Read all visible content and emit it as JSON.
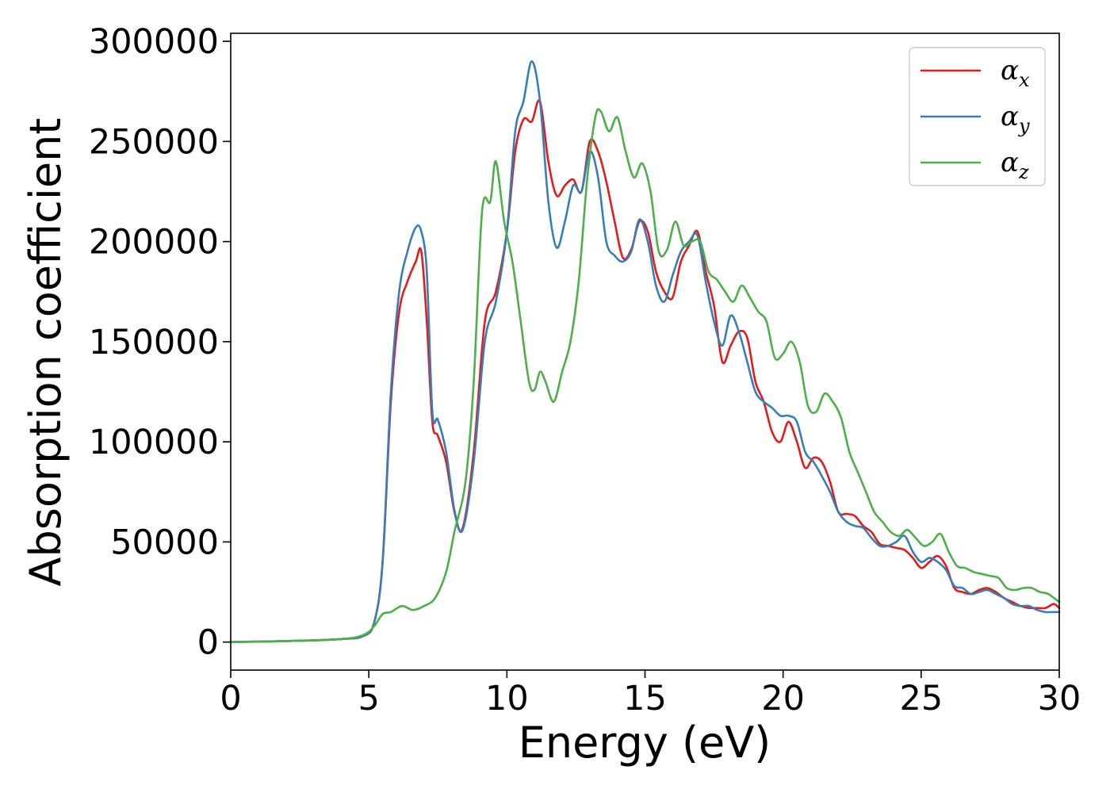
{
  "chart_data": {
    "type": "line",
    "title": "",
    "xlabel": "Energy (eV)",
    "ylabel": "Absorption coefficient",
    "xlim": [
      0,
      30
    ],
    "ylim": [
      -14000,
      304000
    ],
    "xticks": [
      0,
      5,
      10,
      15,
      20,
      25,
      30
    ],
    "xtick_labels": [
      "0",
      "5",
      "10",
      "15",
      "20",
      "25",
      "30"
    ],
    "yticks": [
      0,
      50000,
      100000,
      150000,
      200000,
      250000,
      300000
    ],
    "ytick_labels": [
      "0",
      "50000",
      "100000",
      "150000",
      "200000",
      "250000",
      "300000"
    ],
    "grid": false,
    "legend_position": "top-right",
    "series": [
      {
        "name": "α_x",
        "symbol": "α",
        "subscript": "x",
        "color": "#e41a1c",
        "x": [
          0,
          2,
          4,
          4.8,
          5.2,
          5.5,
          5.8,
          6.1,
          6.4,
          6.7,
          6.9,
          7.1,
          7.3,
          7.5,
          7.8,
          8.1,
          8.4,
          8.8,
          9.2,
          9.6,
          10.0,
          10.3,
          10.6,
          10.9,
          11.2,
          11.5,
          11.8,
          12.1,
          12.4,
          12.7,
          13.0,
          13.3,
          13.6,
          13.9,
          14.2,
          14.5,
          14.8,
          15.1,
          15.4,
          15.7,
          16.0,
          16.3,
          16.6,
          16.9,
          17.2,
          17.5,
          17.8,
          18.1,
          18.4,
          18.7,
          19.0,
          19.3,
          19.6,
          19.9,
          20.2,
          20.5,
          20.8,
          21.1,
          21.4,
          21.7,
          22.0,
          22.3,
          22.6,
          22.9,
          23.2,
          23.5,
          23.8,
          24.1,
          24.4,
          24.7,
          25.0,
          25.3,
          25.6,
          25.9,
          26.2,
          26.5,
          26.8,
          27.1,
          27.4,
          27.7,
          28.0,
          28.3,
          28.6,
          28.9,
          29.2,
          29.5,
          29.8,
          30.0
        ],
        "y": [
          0,
          500,
          1500,
          3000,
          10000,
          40000,
          120000,
          165000,
          180000,
          190000,
          195000,
          160000,
          110000,
          103000,
          90000,
          65000,
          57000,
          95000,
          160000,
          175000,
          205000,
          245000,
          261000,
          260000,
          270000,
          240000,
          223000,
          228000,
          231000,
          225000,
          250000,
          245000,
          230000,
          210000,
          192000,
          196000,
          210000,
          205000,
          185000,
          175000,
          172000,
          190000,
          198000,
          205000,
          185000,
          168000,
          140000,
          148000,
          155000,
          152000,
          130000,
          120000,
          105000,
          100000,
          110000,
          100000,
          87000,
          92000,
          90000,
          80000,
          65000,
          64000,
          63000,
          58000,
          55000,
          49000,
          48000,
          47000,
          46000,
          42000,
          37000,
          40000,
          43000,
          38000,
          27000,
          25000,
          24000,
          26000,
          27000,
          25000,
          22000,
          20000,
          18000,
          17000,
          17000,
          17000,
          19000,
          17000
        ]
      },
      {
        "name": "α_y",
        "symbol": "α",
        "subscript": "y",
        "color": "#377eb8",
        "x": [
          0,
          2,
          4,
          4.8,
          5.2,
          5.5,
          5.8,
          6.1,
          6.4,
          6.7,
          6.9,
          7.1,
          7.3,
          7.5,
          7.8,
          8.1,
          8.4,
          8.8,
          9.2,
          9.6,
          10.0,
          10.3,
          10.6,
          10.9,
          11.2,
          11.5,
          11.8,
          12.1,
          12.4,
          12.7,
          13.0,
          13.3,
          13.6,
          13.9,
          14.2,
          14.5,
          14.8,
          15.1,
          15.4,
          15.7,
          16.0,
          16.3,
          16.6,
          16.9,
          17.2,
          17.5,
          17.8,
          18.1,
          18.4,
          18.7,
          19.0,
          19.3,
          19.6,
          19.9,
          20.2,
          20.5,
          20.8,
          21.1,
          21.4,
          21.7,
          22.0,
          22.3,
          22.6,
          22.9,
          23.2,
          23.5,
          23.8,
          24.1,
          24.4,
          24.7,
          25.0,
          25.3,
          25.6,
          25.9,
          26.2,
          26.5,
          26.8,
          27.1,
          27.4,
          27.7,
          28.0,
          28.3,
          28.6,
          28.9,
          29.2,
          29.5,
          29.8,
          30.0
        ],
        "y": [
          0,
          500,
          1500,
          3000,
          10000,
          40000,
          125000,
          175000,
          195000,
          207000,
          205000,
          185000,
          115000,
          111000,
          95000,
          66000,
          56000,
          90000,
          150000,
          170000,
          205000,
          255000,
          270000,
          290000,
          270000,
          220000,
          197000,
          210000,
          228000,
          225000,
          245000,
          232000,
          200000,
          193000,
          190000,
          195000,
          211000,
          200000,
          178000,
          170000,
          183000,
          195000,
          200000,
          203000,
          180000,
          160000,
          148000,
          163000,
          155000,
          140000,
          125000,
          120000,
          117000,
          113000,
          113000,
          110000,
          95000,
          90000,
          83000,
          75000,
          65000,
          60000,
          58000,
          57000,
          52000,
          48000,
          48000,
          50000,
          53000,
          45000,
          40000,
          42000,
          40000,
          36000,
          28000,
          27000,
          24000,
          25000,
          26000,
          24000,
          22000,
          19000,
          18000,
          18000,
          16000,
          15000,
          15000,
          15000
        ]
      },
      {
        "name": "α_z",
        "symbol": "α",
        "subscript": "z",
        "color": "#4daf4a",
        "x": [
          0,
          2,
          4,
          4.8,
          5.2,
          5.5,
          5.8,
          6.2,
          6.6,
          7.0,
          7.4,
          7.8,
          8.1,
          8.5,
          8.8,
          9.1,
          9.4,
          9.6,
          9.9,
          10.2,
          10.5,
          10.8,
          11.0,
          11.2,
          11.4,
          11.7,
          12.0,
          12.3,
          12.6,
          12.9,
          13.2,
          13.4,
          13.7,
          14.0,
          14.3,
          14.6,
          14.9,
          15.2,
          15.5,
          15.8,
          16.1,
          16.4,
          16.7,
          17.0,
          17.3,
          17.6,
          17.9,
          18.2,
          18.5,
          18.8,
          19.1,
          19.4,
          19.7,
          20.0,
          20.3,
          20.6,
          20.9,
          21.2,
          21.5,
          21.8,
          22.1,
          22.4,
          22.7,
          23.0,
          23.3,
          23.6,
          23.9,
          24.2,
          24.5,
          24.8,
          25.1,
          25.4,
          25.7,
          26.0,
          26.3,
          26.6,
          26.9,
          27.2,
          27.5,
          27.8,
          28.1,
          28.4,
          28.7,
          29.0,
          29.3,
          29.6,
          30.0
        ],
        "y": [
          0,
          400,
          1500,
          3500,
          8000,
          14000,
          15000,
          18000,
          16000,
          18000,
          22000,
          35000,
          55000,
          80000,
          130000,
          215000,
          220000,
          240000,
          210000,
          190000,
          160000,
          130000,
          126000,
          135000,
          130000,
          120000,
          135000,
          150000,
          180000,
          230000,
          262000,
          265000,
          255000,
          262000,
          245000,
          232000,
          239000,
          225000,
          195000,
          196000,
          210000,
          198000,
          200000,
          200000,
          185000,
          181000,
          175000,
          170000,
          178000,
          172000,
          165000,
          160000,
          142000,
          144000,
          150000,
          140000,
          118000,
          115000,
          124000,
          120000,
          112000,
          95000,
          85000,
          75000,
          65000,
          60000,
          55000,
          53000,
          56000,
          52000,
          48000,
          50000,
          54000,
          45000,
          38000,
          37000,
          35000,
          34000,
          33000,
          32000,
          27000,
          26000,
          27000,
          27000,
          25000,
          24000,
          20000
        ]
      }
    ]
  }
}
